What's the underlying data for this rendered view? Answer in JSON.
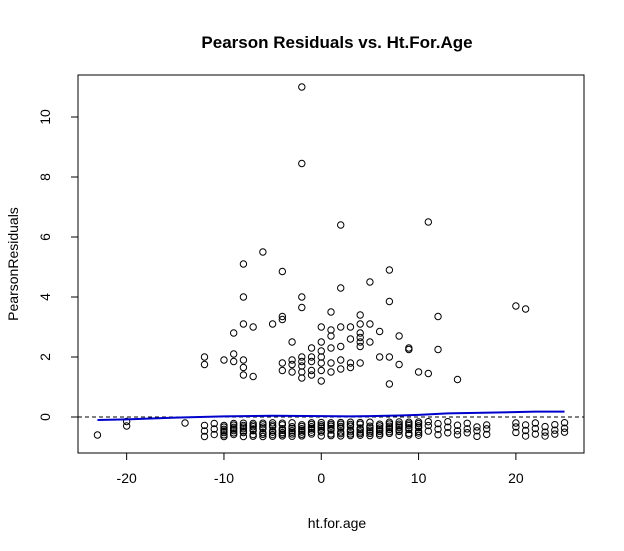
{
  "chart_data": {
    "type": "scatter",
    "title": "Pearson Residuals vs. Ht.For.Age",
    "xlabel": "ht.for.age",
    "ylabel": "PearsonResiduals",
    "xlim": [
      -25.0,
      27.0
    ],
    "ylim": [
      -1.2,
      11.4
    ],
    "x_ticks": [
      -20,
      -10,
      0,
      10,
      20
    ],
    "y_ticks": [
      0,
      2,
      4,
      6,
      8,
      10
    ],
    "grid": false,
    "reference_line": {
      "y": 0,
      "style": "dashed",
      "color": "#000000"
    },
    "points_color": "#000000",
    "smooth_color": "#0000cc",
    "points": [
      [
        -23,
        -0.6
      ],
      [
        -20,
        -0.3
      ],
      [
        -20,
        -0.15
      ],
      [
        -14,
        -0.2
      ],
      [
        -12,
        2.0
      ],
      [
        -12,
        1.75
      ],
      [
        -9,
        2.8
      ],
      [
        -8,
        5.1
      ],
      [
        -8,
        4.0
      ],
      [
        -8,
        3.1
      ],
      [
        -8,
        1.9
      ],
      [
        -8,
        1.65
      ],
      [
        -8,
        1.4
      ],
      [
        -9,
        2.1
      ],
      [
        -9,
        1.85
      ],
      [
        -10,
        1.9
      ],
      [
        -7,
        1.35
      ],
      [
        -7,
        3.0
      ],
      [
        -6,
        5.5
      ],
      [
        -5,
        3.1
      ],
      [
        -4,
        3.35
      ],
      [
        -4,
        1.8
      ],
      [
        -4,
        4.85
      ],
      [
        -4,
        3.25
      ],
      [
        -4,
        1.55
      ],
      [
        -3,
        1.75
      ],
      [
        -3,
        1.5
      ],
      [
        -3,
        1.9
      ],
      [
        -3,
        2.5
      ],
      [
        -2,
        11.0
      ],
      [
        -2,
        8.45
      ],
      [
        -2,
        4.0
      ],
      [
        -2,
        3.65
      ],
      [
        -2,
        2.0
      ],
      [
        -2,
        1.85
      ],
      [
        -2,
        1.7
      ],
      [
        -2,
        1.5
      ],
      [
        -2,
        1.3
      ],
      [
        -1,
        2.0
      ],
      [
        -1,
        1.85
      ],
      [
        -1,
        2.3
      ],
      [
        -1,
        1.4
      ],
      [
        -1,
        1.55
      ],
      [
        0,
        3.0
      ],
      [
        0,
        2.5
      ],
      [
        0,
        2.2
      ],
      [
        0,
        2.0
      ],
      [
        0,
        1.8
      ],
      [
        0,
        1.55
      ],
      [
        0,
        1.2
      ],
      [
        1,
        3.5
      ],
      [
        1,
        2.9
      ],
      [
        1,
        2.7
      ],
      [
        1,
        2.3
      ],
      [
        1,
        1.8
      ],
      [
        1,
        1.5
      ],
      [
        2,
        6.4
      ],
      [
        2,
        4.3
      ],
      [
        2,
        3.0
      ],
      [
        2,
        2.35
      ],
      [
        2,
        1.9
      ],
      [
        2,
        1.6
      ],
      [
        3,
        3.0
      ],
      [
        3,
        2.6
      ],
      [
        3,
        1.8
      ],
      [
        3,
        1.65
      ],
      [
        4,
        3.4
      ],
      [
        4,
        3.1
      ],
      [
        4,
        2.8
      ],
      [
        4,
        2.65
      ],
      [
        4,
        2.5
      ],
      [
        4,
        2.35
      ],
      [
        4,
        1.8
      ],
      [
        5,
        4.5
      ],
      [
        5,
        3.1
      ],
      [
        5,
        2.5
      ],
      [
        6,
        2.85
      ],
      [
        6,
        2.0
      ],
      [
        7,
        4.9
      ],
      [
        7,
        3.85
      ],
      [
        7,
        1.1
      ],
      [
        7,
        2.0
      ],
      [
        8,
        2.7
      ],
      [
        8,
        1.75
      ],
      [
        9,
        2.25
      ],
      [
        9,
        2.3
      ],
      [
        10,
        1.5
      ],
      [
        11,
        6.5
      ],
      [
        11,
        1.45
      ],
      [
        12,
        3.35
      ],
      [
        12,
        2.25
      ],
      [
        14,
        1.25
      ],
      [
        20,
        3.7
      ],
      [
        21,
        3.6
      ]
    ],
    "negative_cluster": {
      "x_values": [
        -12,
        -11,
        -10,
        -9,
        -8,
        -7,
        -6,
        -5,
        -4,
        -3,
        -2,
        -1,
        0,
        1,
        2,
        3,
        4,
        5,
        6,
        7,
        8,
        9,
        10,
        11,
        12,
        13,
        14,
        15,
        16,
        17,
        20,
        21,
        22,
        23,
        24,
        25
      ],
      "y_range": [
        -0.65,
        -0.15
      ]
    },
    "smooth_line": [
      [
        -23,
        -0.1
      ],
      [
        -20,
        -0.08
      ],
      [
        -15,
        -0.02
      ],
      [
        -10,
        0.02
      ],
      [
        -5,
        0.04
      ],
      [
        0,
        0.03
      ],
      [
        3,
        0.02
      ],
      [
        5,
        0.03
      ],
      [
        8,
        0.05
      ],
      [
        10,
        0.07
      ],
      [
        13,
        0.12
      ],
      [
        18,
        0.15
      ],
      [
        22,
        0.18
      ],
      [
        25,
        0.18
      ]
    ]
  }
}
